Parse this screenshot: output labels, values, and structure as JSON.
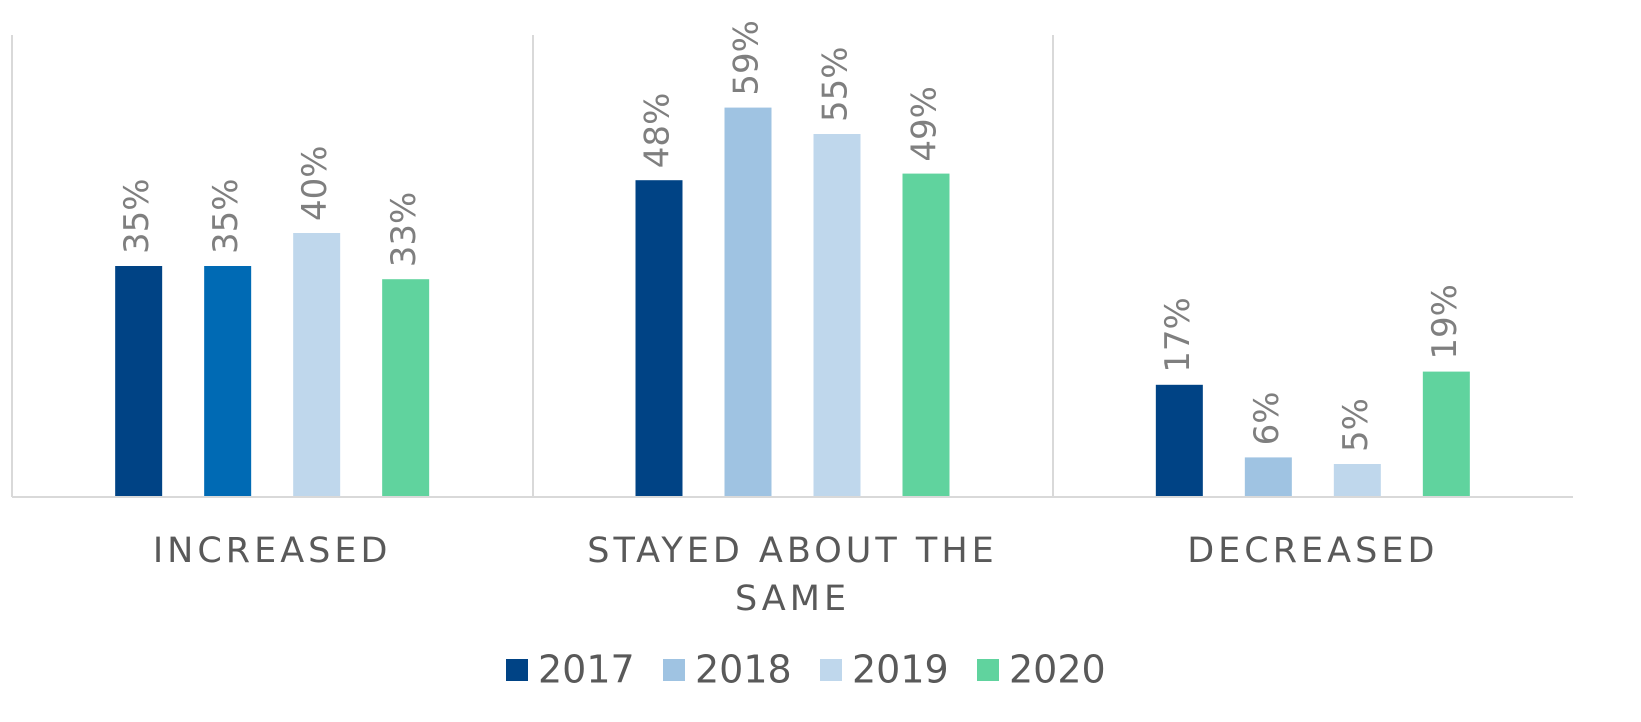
{
  "chart_data": {
    "type": "bar",
    "categories": [
      "INCREASED",
      "STAYED ABOUT THE SAME",
      "DECREASED"
    ],
    "series": [
      {
        "name": "2017",
        "color": "#004385",
        "values": [
          35,
          48,
          17
        ],
        "value_labels": [
          "35%",
          "48%",
          "17%"
        ]
      },
      {
        "name": "2018",
        "color": "#9fc3e2",
        "colors": [
          "#006ab4",
          "#9fc3e2",
          "#9fc3e2"
        ],
        "values": [
          35,
          59,
          6
        ],
        "value_labels": [
          "35%",
          "59%",
          "6%"
        ]
      },
      {
        "name": "2019",
        "color": "#bfd7ec",
        "values": [
          40,
          55,
          5
        ],
        "value_labels": [
          "40%",
          "55%",
          "5%"
        ]
      },
      {
        "name": "2020",
        "color": "#60d39e",
        "values": [
          33,
          49,
          19
        ],
        "value_labels": [
          "33%",
          "49%",
          "19%"
        ]
      }
    ],
    "ylim": [
      0,
      70
    ],
    "legend": "bottom"
  }
}
